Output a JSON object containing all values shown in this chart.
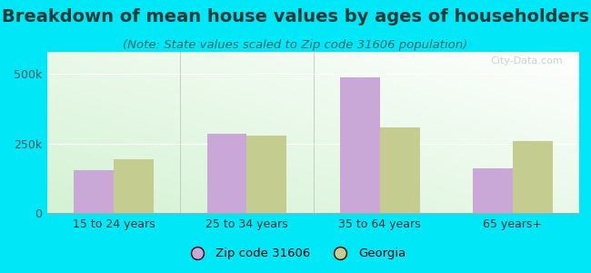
{
  "title": "Breakdown of mean house values by ages of householders",
  "subtitle": "(Note: State values scaled to Zip code 31606 population)",
  "categories": [
    "15 to 24 years",
    "25 to 34 years",
    "35 to 64 years",
    "65 years+"
  ],
  "zip_values": [
    155000,
    285000,
    487000,
    162000
  ],
  "state_values": [
    192000,
    278000,
    308000,
    258000
  ],
  "zip_color": "#c9a8d8",
  "state_color": "#c5cc90",
  "zip_label": "Zip code 31606",
  "state_label": "Georgia",
  "ylim": [
    0,
    580000
  ],
  "yticks": [
    0,
    250000,
    500000
  ],
  "ytick_labels": [
    "0",
    "250k",
    "500k"
  ],
  "background_outer": "#00e8f8",
  "watermark": "City-Data.com",
  "title_fontsize": 14,
  "subtitle_fontsize": 9.5,
  "title_color": "#1a3a3a",
  "subtitle_color": "#336666",
  "bar_width": 0.3,
  "figsize": [
    6.5,
    3.0
  ],
  "dpi": 100
}
